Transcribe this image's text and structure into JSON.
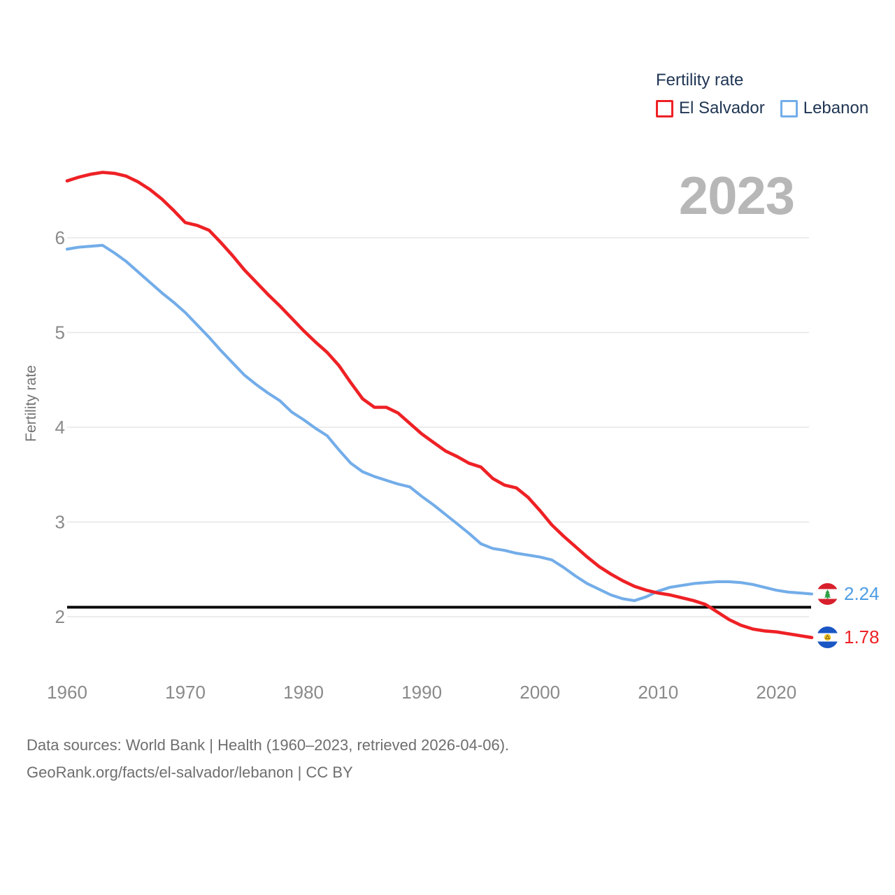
{
  "colors": {
    "grid": "#e6e6e6",
    "tick": "#8a8a8a",
    "replacement": "#000000",
    "legend_text": "#1f3553",
    "watermark": "#b7b7b7",
    "footer_text": "#6e6e6e"
  },
  "footer": {
    "line1": "Data sources: World Bank | Health (1960–2023, retrieved 2026-04-06).",
    "line2": "GeoRank.org/facts/el-salvador/lebanon | CC BY"
  },
  "chart_data": {
    "type": "line",
    "title": "Fertility rate",
    "ylabel": "Fertility rate",
    "watermark_year": "2023",
    "legend_position": "top-right",
    "grid": "horizontal",
    "xlim": [
      1960,
      2023
    ],
    "ylim": [
      1.7,
      6.8
    ],
    "y_ticks": [
      2,
      3,
      4,
      5,
      6
    ],
    "x_ticks": [
      1960,
      1970,
      1980,
      1990,
      2000,
      2010,
      2020
    ],
    "replacement_line": {
      "value": 2.1
    },
    "x": [
      1960,
      1961,
      1962,
      1963,
      1964,
      1965,
      1966,
      1967,
      1968,
      1969,
      1970,
      1971,
      1972,
      1973,
      1974,
      1975,
      1976,
      1977,
      1978,
      1979,
      1980,
      1981,
      1982,
      1983,
      1984,
      1985,
      1986,
      1987,
      1988,
      1989,
      1990,
      1991,
      1992,
      1993,
      1994,
      1995,
      1996,
      1997,
      1998,
      1999,
      2000,
      2001,
      2002,
      2003,
      2004,
      2005,
      2006,
      2007,
      2008,
      2009,
      2010,
      2011,
      2012,
      2013,
      2014,
      2015,
      2016,
      2017,
      2018,
      2019,
      2020,
      2021,
      2022,
      2023
    ],
    "series": [
      {
        "name": "El Salvador",
        "color": "#ee2125",
        "label_color": "#ee2125",
        "end_label": "1.78",
        "values": [
          6.6,
          6.64,
          6.67,
          6.69,
          6.68,
          6.65,
          6.59,
          6.51,
          6.41,
          6.29,
          6.16,
          6.13,
          6.08,
          5.95,
          5.81,
          5.66,
          5.53,
          5.4,
          5.28,
          5.15,
          5.02,
          4.9,
          4.79,
          4.65,
          4.47,
          4.3,
          4.21,
          4.21,
          4.15,
          4.04,
          3.93,
          3.84,
          3.75,
          3.69,
          3.62,
          3.58,
          3.46,
          3.39,
          3.36,
          3.26,
          3.12,
          2.97,
          2.85,
          2.74,
          2.63,
          2.53,
          2.45,
          2.38,
          2.32,
          2.28,
          2.25,
          2.23,
          2.2,
          2.17,
          2.13,
          2.05,
          1.97,
          1.91,
          1.87,
          1.85,
          1.84,
          1.82,
          1.8,
          1.78
        ]
      },
      {
        "name": "Lebanon",
        "color": "#73ade9",
        "label_color": "#4d9de4",
        "end_label": "2.24",
        "values": [
          5.88,
          5.9,
          5.91,
          5.92,
          5.84,
          5.75,
          5.64,
          5.53,
          5.42,
          5.32,
          5.21,
          5.08,
          4.95,
          4.81,
          4.68,
          4.55,
          4.45,
          4.36,
          4.28,
          4.16,
          4.08,
          3.99,
          3.91,
          3.76,
          3.62,
          3.53,
          3.48,
          3.44,
          3.4,
          3.37,
          3.27,
          3.18,
          3.08,
          2.98,
          2.88,
          2.77,
          2.72,
          2.7,
          2.67,
          2.65,
          2.63,
          2.6,
          2.52,
          2.43,
          2.35,
          2.29,
          2.23,
          2.19,
          2.17,
          2.21,
          2.27,
          2.31,
          2.33,
          2.35,
          2.36,
          2.37,
          2.37,
          2.36,
          2.34,
          2.31,
          2.28,
          2.26,
          2.25,
          2.24
        ]
      }
    ]
  }
}
